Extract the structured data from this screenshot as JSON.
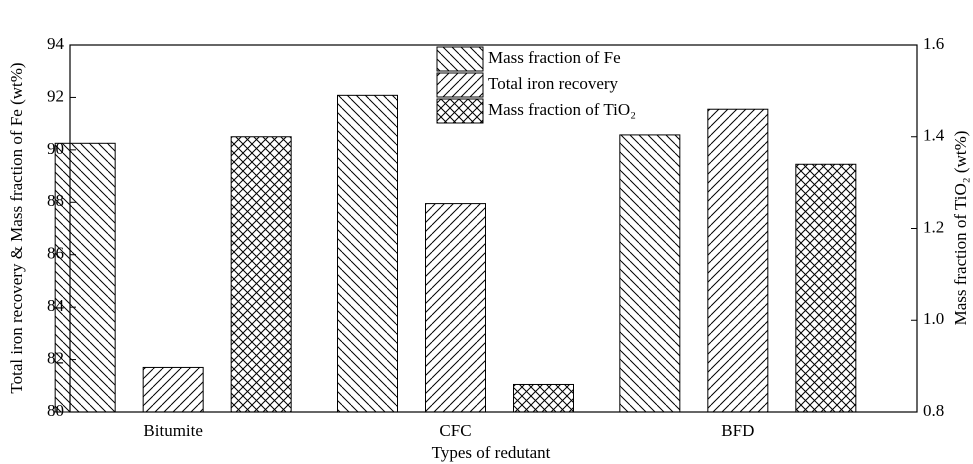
{
  "chart_data": {
    "type": "bar",
    "xlabel": "Types of redutant",
    "ylabel": "Total iron recovery & Mass fraction of Fe (wt%)",
    "y2label": "Mass fraction of TiO₂ (wt%)",
    "categories": [
      "Bitumite",
      "CFC",
      "BFD"
    ],
    "series": [
      {
        "name": "Mass fraction of Fe",
        "color": "#000000",
        "hatch": "\\",
        "values": [
          90.25,
          92.08,
          90.57
        ]
      },
      {
        "name": "Total iron recovery",
        "color": "#000000",
        "hatch": "/",
        "values": [
          81.7,
          87.95,
          91.55
        ]
      },
      {
        "name": "Mass fraction of TiO₂",
        "color": "#000000",
        "hatch": "x",
        "axis": "y2",
        "values": [
          1.4,
          0.86,
          1.34
        ]
      }
    ],
    "ylim": [
      80,
      94
    ],
    "yticks": [
      80,
      82,
      84,
      86,
      88,
      90,
      92,
      94
    ],
    "y2lim": [
      0.8,
      1.6
    ],
    "y2ticks": [
      0.8,
      {
        "value": 1,
        "label": "1.0"
      },
      1.2,
      1.4,
      1.6
    ],
    "legend": "upper center"
  }
}
